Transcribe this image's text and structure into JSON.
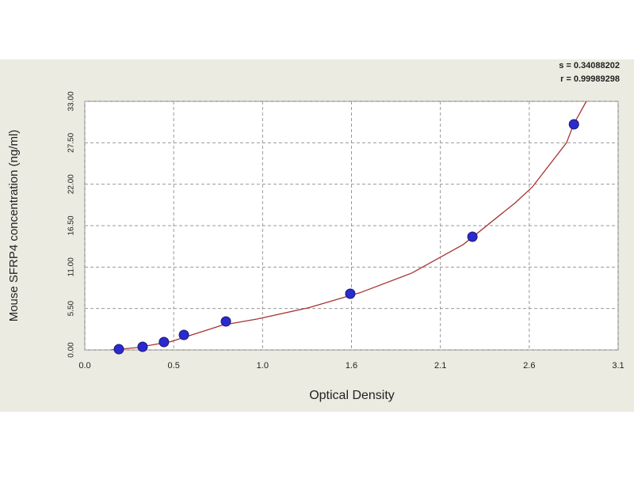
{
  "chart_data": {
    "type": "scatter",
    "xlabel": "Optical Density",
    "ylabel": "Mouse SFRP4 concentration (ng/ml)",
    "annotations": [
      "s = 0.34088202",
      "r = 0.99989298"
    ],
    "x": [
      0.198,
      0.336,
      0.46,
      0.576,
      0.82,
      1.543,
      2.253,
      2.843
    ],
    "values": [
      0.1,
      0.42,
      1.05,
      2.0,
      3.78,
      7.46,
      15.03,
      29.95
    ],
    "color": "#2a2ad0",
    "fit": {
      "color": "#a83232",
      "x": [
        0.15,
        0.3,
        0.5,
        0.8,
        1.0,
        1.3,
        1.6,
        1.9,
        2.2,
        2.5,
        2.6,
        2.8,
        2.84,
        2.915
      ],
      "y": [
        0,
        0.3,
        1.1,
        3.3,
        4.1,
        5.6,
        7.6,
        10.2,
        14.0,
        19.5,
        21.6,
        27.5,
        29.9,
        33
      ]
    },
    "xlim": [
      0,
      3.1
    ],
    "xticks": [
      {
        "value": 0,
        "label": "0.0"
      },
      {
        "value": 0.5167,
        "label": "0.5"
      },
      {
        "value": 1.0333,
        "label": "1.0"
      },
      {
        "value": 1.55,
        "label": "1.6"
      },
      {
        "value": 2.0667,
        "label": "2.1"
      },
      {
        "value": 2.5833,
        "label": "2.6"
      },
      {
        "value": 3.1,
        "label": "3.1"
      }
    ],
    "ylim": [
      0,
      33
    ],
    "yticks": [
      {
        "value": 0,
        "label": "0.00"
      },
      {
        "value": 5.5,
        "label": "5.50"
      },
      {
        "value": 11,
        "label": "11.00"
      },
      {
        "value": 16.5,
        "label": "16.50"
      },
      {
        "value": 22,
        "label": "22.00"
      },
      {
        "value": 27.5,
        "label": "27.50"
      },
      {
        "value": 33,
        "label": "33.00"
      }
    ],
    "grid": true
  }
}
